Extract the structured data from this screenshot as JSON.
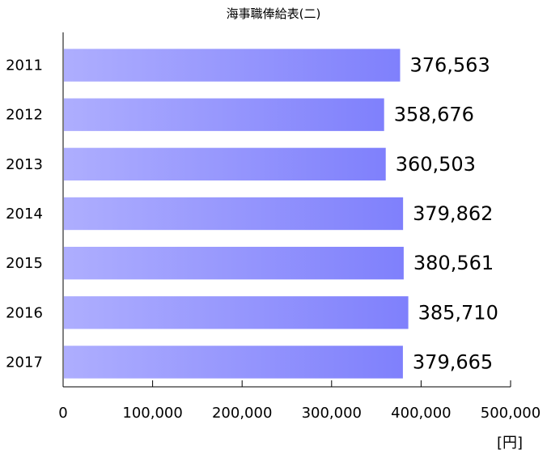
{
  "chart_data": {
    "type": "bar",
    "orientation": "horizontal",
    "title": "海事職俸給表(二)",
    "unit": "[円]",
    "categories": [
      "2011",
      "2012",
      "2013",
      "2014",
      "2015",
      "2016",
      "2017"
    ],
    "values": [
      376563,
      358676,
      360503,
      379862,
      380561,
      385710,
      379665
    ],
    "value_labels": [
      "376,563",
      "358,676",
      "360,503",
      "379,862",
      "380,561",
      "385,710",
      "379,665"
    ],
    "xlim": [
      0,
      500000
    ],
    "xticks": [
      0,
      100000,
      200000,
      300000,
      400000,
      500000
    ],
    "xtick_labels": [
      "0",
      "100,000",
      "200,000",
      "300,000",
      "400,000",
      "500,000"
    ],
    "grid": false,
    "legend": "none",
    "colors": {
      "bar_start": "#aeaefe",
      "bar_end": "#7f80fc",
      "axis": "#000000"
    }
  }
}
